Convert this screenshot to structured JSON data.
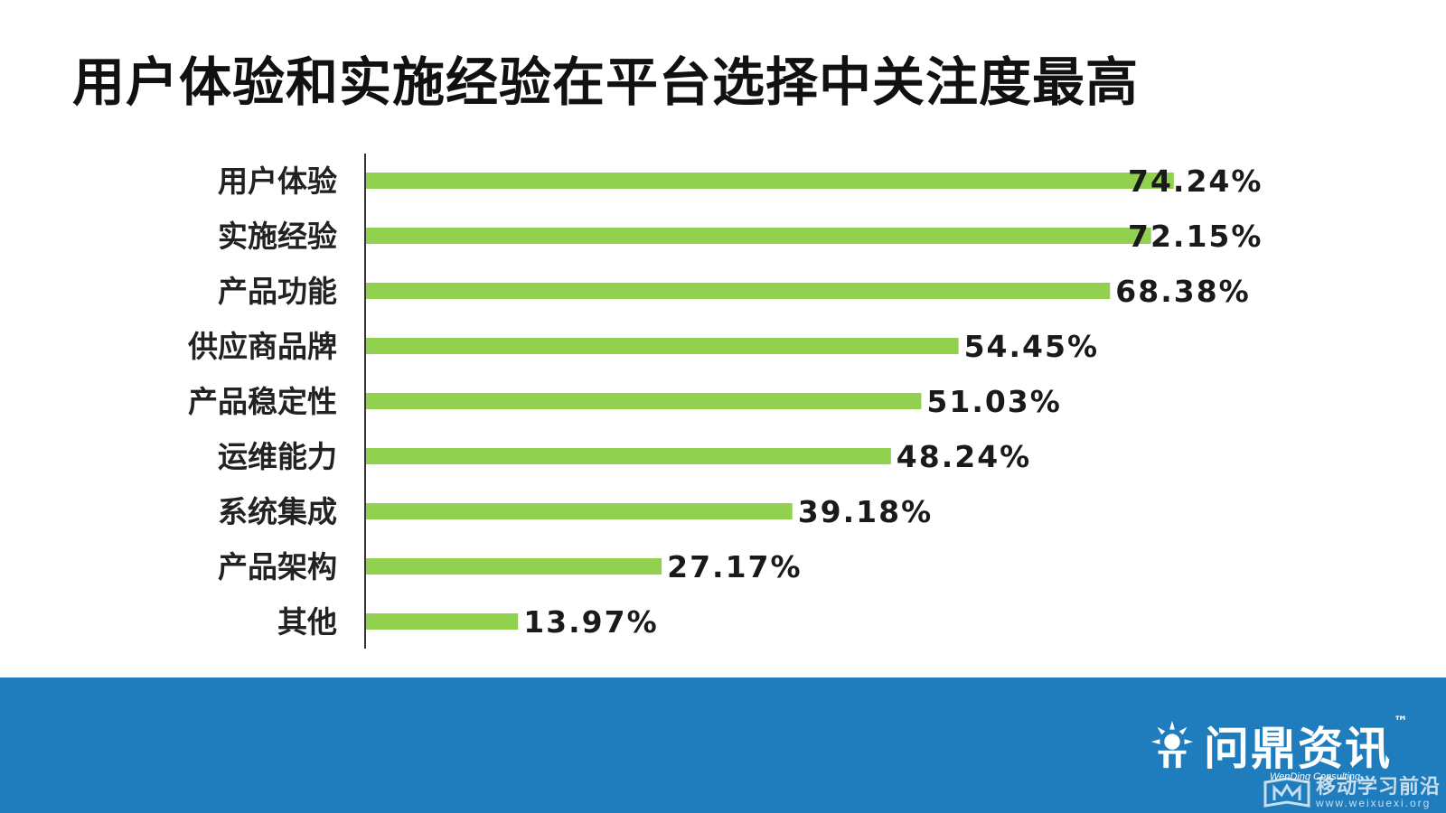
{
  "title": "用户体验和实施经验在平台选择中关注度最高",
  "chart_data": {
    "type": "bar",
    "orientation": "horizontal",
    "categories": [
      "用户体验",
      "实施经验",
      "产品功能",
      "供应商品牌",
      "产品稳定性",
      "运维能力",
      "系统集成",
      "产品架构",
      "其他"
    ],
    "values": [
      74.24,
      72.15,
      68.38,
      54.45,
      51.03,
      48.24,
      39.18,
      27.17,
      13.97
    ],
    "value_labels": [
      "74.24%",
      "72.15%",
      "68.38%",
      "54.45%",
      "51.03%",
      "48.24%",
      "39.18%",
      "27.17%",
      "13.97%"
    ],
    "unit": "%",
    "bar_color": "#92d050",
    "grid": false,
    "legend": "none"
  },
  "footer": {
    "background": "#1f7dbd",
    "logo_text": "问鼎资讯",
    "logo_tm": "™",
    "logo_sub": "WenDing Consulting",
    "watermark_cn": "移动学习前沿",
    "watermark_url": "www.weixuexi.org"
  }
}
